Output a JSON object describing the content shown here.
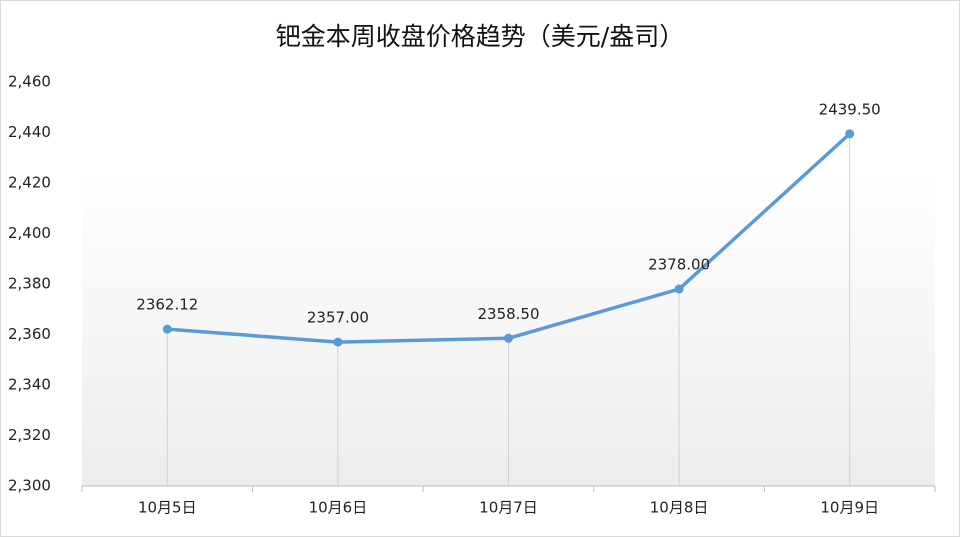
{
  "chart_data": {
    "type": "line",
    "title": "钯金本周收盘价格趋势（美元/盎司）",
    "categories": [
      "10月5日",
      "10月6日",
      "10月7日",
      "10月8日",
      "10月9日"
    ],
    "values": [
      2362.12,
      2357,
      2358.5,
      2378,
      2439.5
    ],
    "value_labels": [
      "2362.12",
      "2357.00",
      "2358.50",
      "2378.00",
      "2439.50"
    ],
    "color": "#5b9bd5",
    "ylim": [
      2300,
      2460
    ],
    "yticks": [
      {
        "value": 2300,
        "label": "2,300"
      },
      {
        "value": 2320,
        "label": "2,320"
      },
      {
        "value": 2340,
        "label": "2,340"
      },
      {
        "value": 2360,
        "label": "2,360"
      },
      {
        "value": 2380,
        "label": "2,380"
      },
      {
        "value": 2400,
        "label": "2,400"
      },
      {
        "value": 2420,
        "label": "2,420"
      },
      {
        "value": 2440,
        "label": "2,440"
      },
      {
        "value": 2460,
        "label": "2,460"
      }
    ],
    "drop_lines": true
  }
}
